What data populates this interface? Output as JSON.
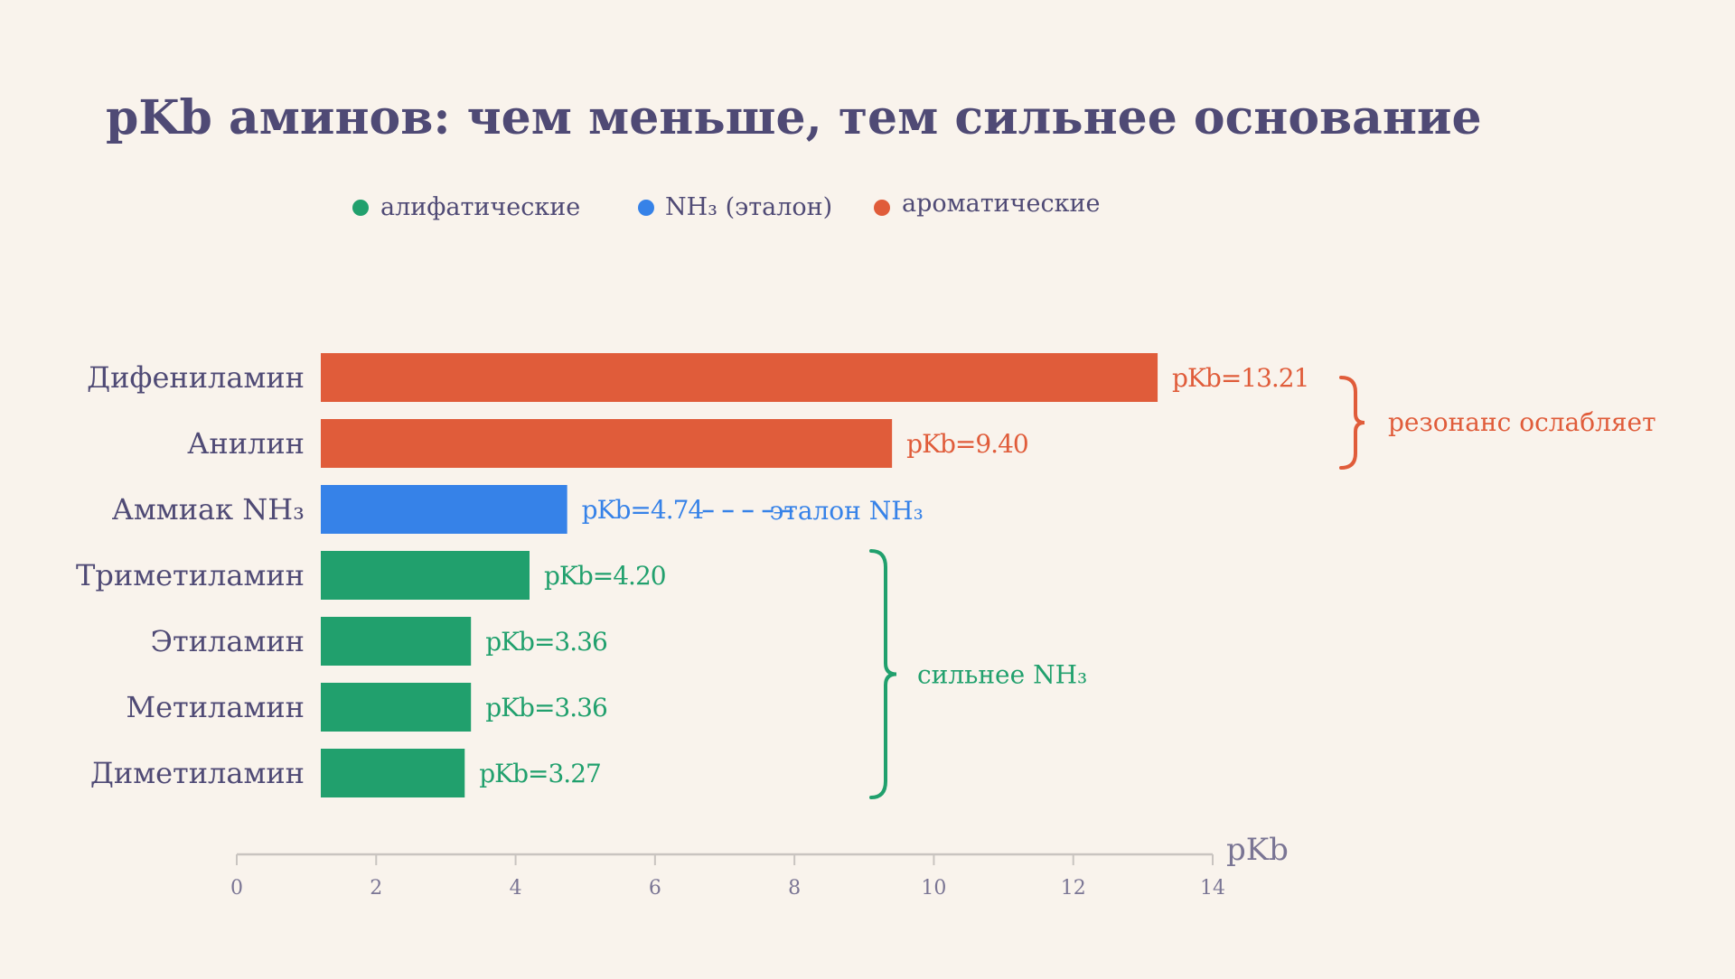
{
  "chart_data": {
    "type": "bar",
    "orientation": "horizontal",
    "title": "pKb аминов: чем меньше, тем сильнее основание",
    "xlabel": "pKb",
    "xlim": [
      0,
      14
    ],
    "xticks": [
      0,
      2,
      4,
      6,
      8,
      10,
      12,
      14
    ],
    "legend": {
      "position": "top",
      "items": [
        {
          "label": "алифатические",
          "color": "#21a06d"
        },
        {
          "label": "NH₃ (эталон)",
          "color": "#3682e8"
        },
        {
          "label": "ароматические",
          "color": "#e05c3a"
        }
      ]
    },
    "categories": [
      "Дифениламин",
      "Анилин",
      "Аммиак NH₃",
      "Триметиламин",
      "Этиламин",
      "Метиламин",
      "Диметиламин"
    ],
    "values": [
      13.21,
      9.4,
      4.74,
      4.2,
      3.36,
      3.36,
      3.27
    ],
    "groups": [
      "ароматические",
      "ароматические",
      "NH₃ (эталон)",
      "алифатические",
      "алифатические",
      "алифатические",
      "алифатические"
    ],
    "value_labels": [
      "pKb=13.21",
      "pKb=9.40",
      "pKb=4.74",
      "pKb=4.20",
      "pKb=3.36",
      "pKb=3.36",
      "pKb=3.27"
    ],
    "annotations": {
      "aromatic": "резонанс ослабляет",
      "reference": "эталон NH₃",
      "aliphatic": "сильнее NH₃"
    },
    "colors": {
      "aliphatic": "#21a06d",
      "reference": "#3682e8",
      "aromatic": "#e05c3a",
      "text": "#4f4a75",
      "axis": "#c9c4c0",
      "tick_text": "#7a7594",
      "background": "#f9f3ec"
    }
  }
}
